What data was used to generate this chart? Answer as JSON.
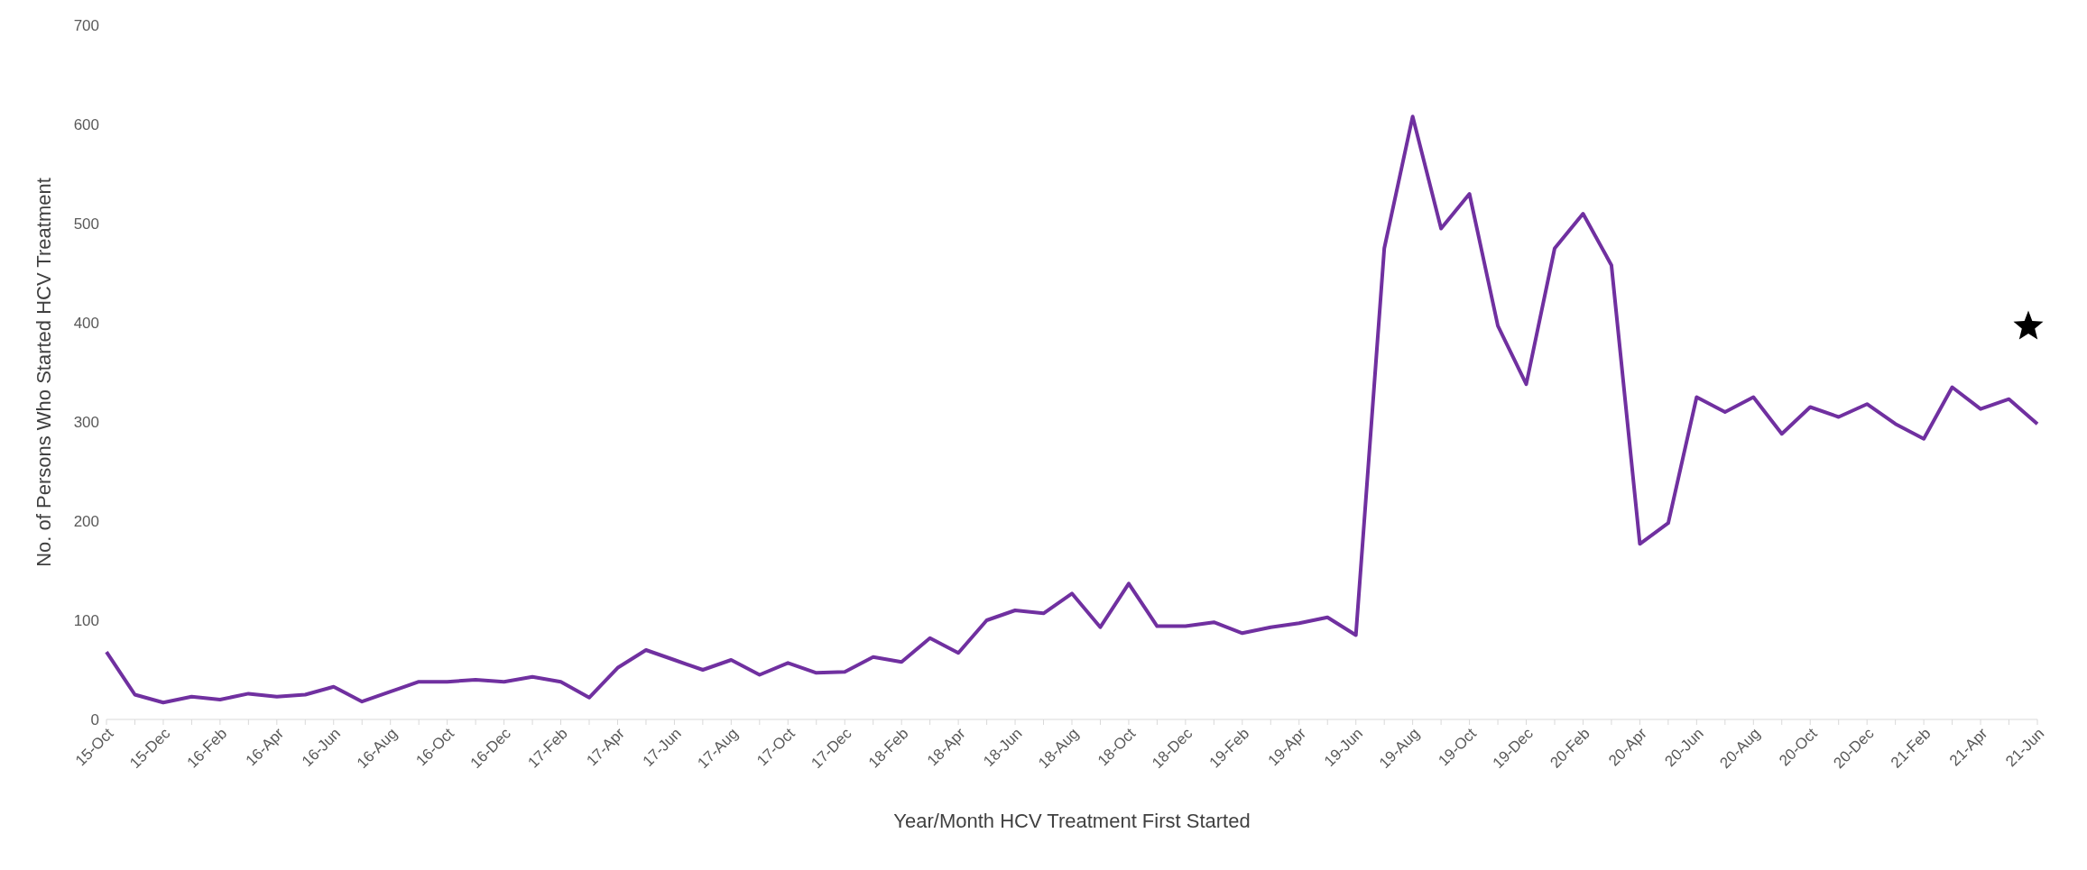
{
  "chart_data": {
    "type": "line",
    "xlabel": "Year/Month HCV Treatment First Started",
    "ylabel": "No. of Persons Who Started HCV Treatment",
    "categories": [
      "15-Oct",
      null,
      "15-Dec",
      null,
      "16-Feb",
      null,
      "16-Apr",
      null,
      "16-Jun",
      null,
      "16-Aug",
      null,
      "16-Oct",
      null,
      "16-Dec",
      null,
      "17-Feb",
      null,
      "17-Apr",
      null,
      "17-Jun",
      null,
      "17-Aug",
      null,
      "17-Oct",
      null,
      "17-Dec",
      null,
      "18-Feb",
      null,
      "18-Apr",
      null,
      "18-Jun",
      null,
      "18-Aug",
      null,
      "18-Oct",
      null,
      "18-Dec",
      null,
      "19-Feb",
      null,
      "19-Apr",
      null,
      "19-Jun",
      null,
      "19-Aug",
      null,
      "19-Oct",
      null,
      "19-Dec",
      null,
      "20-Feb",
      null,
      "20-Apr",
      null,
      "20-Jun",
      null,
      "20-Aug",
      null,
      "20-Oct",
      null,
      "20-Dec",
      null,
      "21-Feb",
      null,
      "21-Apr",
      null,
      "21-Jun"
    ],
    "series": [
      {
        "color": "#7030a0",
        "values": [
          68,
          25,
          17,
          23,
          20,
          26,
          23,
          25,
          33,
          18,
          28,
          38,
          38,
          40,
          38,
          43,
          38,
          22,
          52,
          70,
          60,
          50,
          60,
          45,
          57,
          47,
          48,
          63,
          58,
          82,
          67,
          100,
          110,
          107,
          127,
          93,
          137,
          94,
          94,
          98,
          87,
          93,
          97,
          103,
          85,
          475,
          608,
          495,
          530,
          397,
          338,
          475,
          510,
          458,
          177,
          198,
          325,
          310,
          325,
          288,
          315,
          305,
          318,
          298,
          283,
          335,
          313,
          323,
          298
        ]
      }
    ],
    "ylim": [
      0,
      700
    ],
    "yticks": [
      0,
      100,
      200,
      300,
      400,
      500,
      600,
      700
    ],
    "marker": "none",
    "line_style": "solid"
  }
}
